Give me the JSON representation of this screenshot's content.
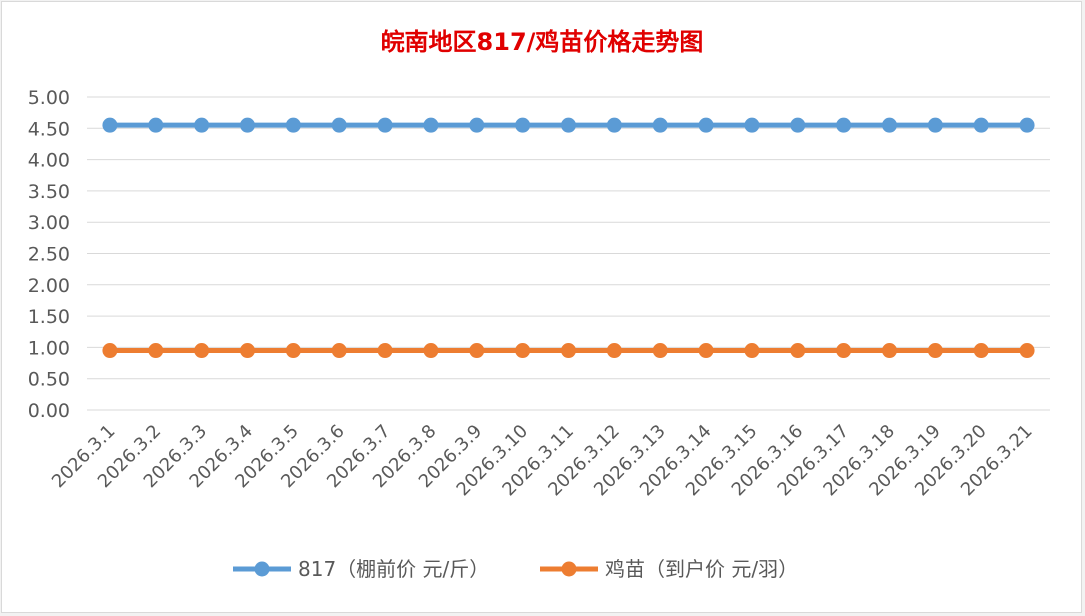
{
  "chart_data": {
    "type": "line",
    "title": "皖南地区817/鸡苗价格走势图",
    "title_color": "#e00000",
    "categories": [
      "2026.3.1",
      "2026.3.2",
      "2026.3.3",
      "2026.3.4",
      "2026.3.5",
      "2026.3.6",
      "2026.3.7",
      "2026.3.8",
      "2026.3.9",
      "2026.3.10",
      "2026.3.11",
      "2026.3.12",
      "2026.3.13",
      "2026.3.14",
      "2026.3.15",
      "2026.3.16",
      "2026.3.17",
      "2026.3.18",
      "2026.3.19",
      "2026.3.20",
      "2026.3.21"
    ],
    "y_ticks": [
      "0.00",
      "0.50",
      "1.00",
      "1.50",
      "2.00",
      "2.50",
      "3.00",
      "3.50",
      "4.00",
      "4.50",
      "5.00"
    ],
    "ylim": [
      0,
      5
    ],
    "grid": true,
    "legend_position": "bottom",
    "series": [
      {
        "name": "817（棚前价 元/斤）",
        "color": "#5b9bd5",
        "values": [
          4.55,
          4.55,
          4.55,
          4.55,
          4.55,
          4.55,
          4.55,
          4.55,
          4.55,
          4.55,
          4.55,
          4.55,
          4.55,
          4.55,
          4.55,
          4.55,
          4.55,
          4.55,
          4.55,
          4.55,
          4.55
        ]
      },
      {
        "name": "鸡苗（到户价 元/羽）",
        "color": "#ed7d31",
        "values": [
          0.95,
          0.95,
          0.95,
          0.95,
          0.95,
          0.95,
          0.95,
          0.95,
          0.95,
          0.95,
          0.95,
          0.95,
          0.95,
          0.95,
          0.95,
          0.95,
          0.95,
          0.95,
          0.95,
          0.95,
          0.95
        ]
      }
    ]
  }
}
